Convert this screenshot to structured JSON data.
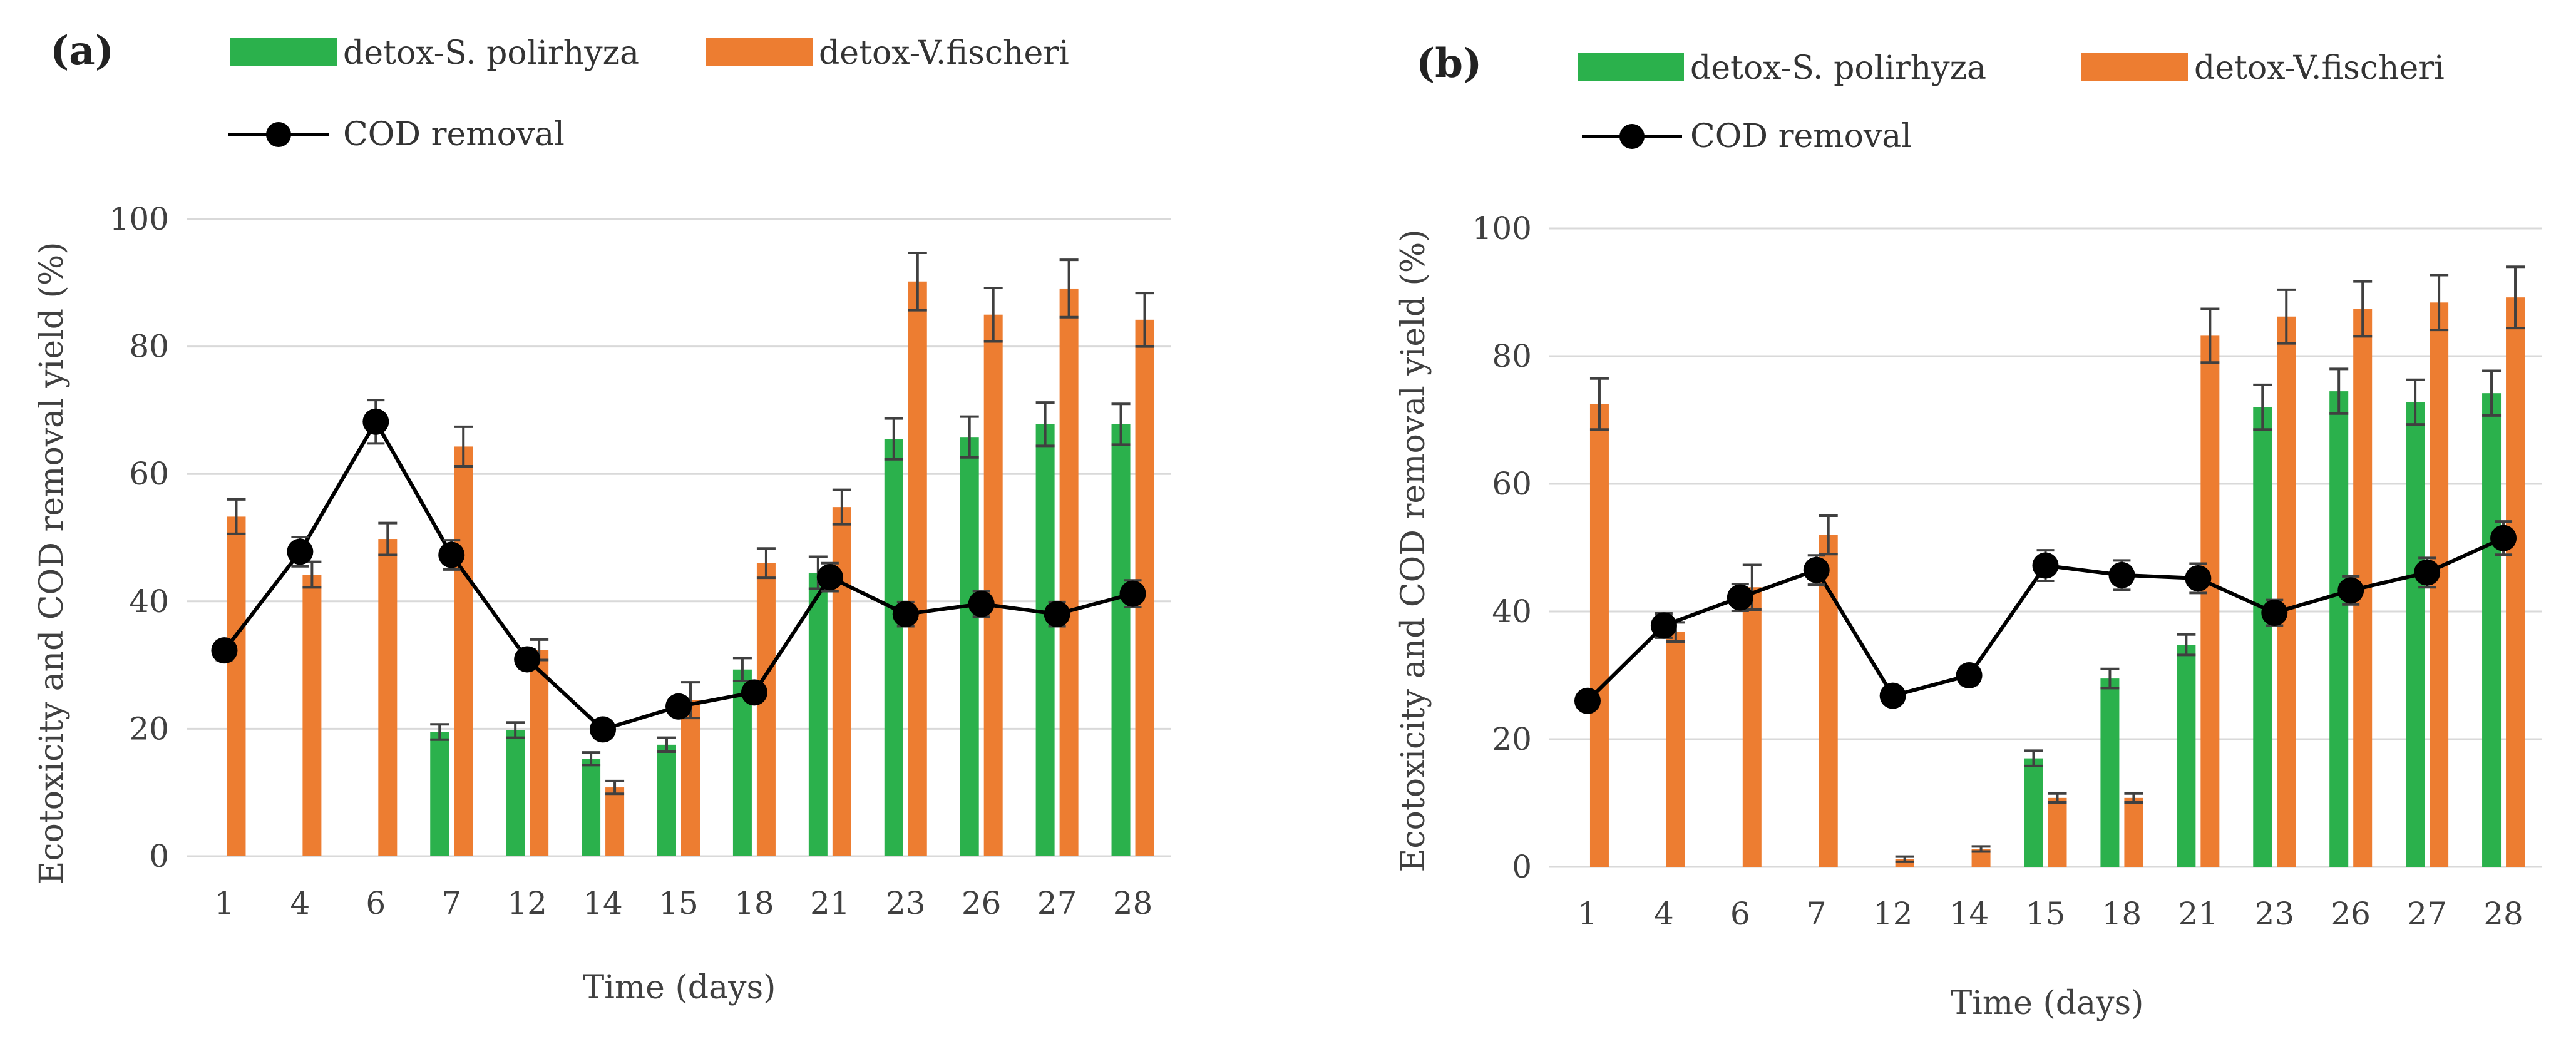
{
  "colors": {
    "green": "#2bb14c",
    "orange": "#ed7d31",
    "line": "#000000",
    "grid": "#d9d9d9",
    "error": "#404040"
  },
  "legend": {
    "series_a": "detox-S. polirhyza",
    "series_b": "detox-V.fischeri",
    "series_line": "COD removal"
  },
  "chart_data": [
    {
      "type": "bar",
      "panel": "(a)",
      "xlabel": "Time (days)",
      "ylabel": "Ecotoxicity and COD removal yield (%)",
      "ylim": [
        0,
        100
      ],
      "yticks": [
        0,
        20,
        40,
        60,
        80,
        100
      ],
      "grid": true,
      "categories": [
        "1",
        "4",
        "6",
        "7",
        "12",
        "14",
        "15",
        "18",
        "21",
        "23",
        "26",
        "27",
        "28"
      ],
      "series": [
        {
          "name": "detox-S. polirhyza",
          "kind": "bar",
          "values": [
            null,
            null,
            null,
            19.5,
            19.8,
            15.3,
            17.5,
            29.3,
            44.5,
            65.5,
            65.8,
            67.8,
            67.8
          ],
          "errors": [
            0,
            0,
            0,
            1.2,
            1.2,
            1.0,
            1.1,
            1.8,
            2.5,
            3.2,
            3.2,
            3.4,
            3.2
          ]
        },
        {
          "name": "detox-V.fischeri",
          "kind": "bar",
          "values": [
            53.3,
            44.2,
            49.8,
            64.3,
            32.4,
            10.8,
            24.5,
            46.0,
            54.8,
            90.2,
            85.0,
            89.1,
            84.2
          ],
          "errors": [
            2.7,
            2.0,
            2.5,
            3.1,
            1.6,
            1.0,
            2.8,
            2.3,
            2.7,
            4.5,
            4.2,
            4.5,
            4.2
          ]
        },
        {
          "name": "COD removal",
          "kind": "line",
          "values": [
            32.3,
            47.8,
            68.2,
            47.3,
            30.9,
            19.9,
            23.5,
            25.7,
            43.8,
            38.0,
            39.6,
            38.0,
            41.2
          ],
          "errors": [
            1.5,
            2.3,
            3.4,
            2.3,
            1.5,
            1.0,
            1.2,
            1.3,
            2.2,
            1.9,
            2.0,
            1.9,
            2.1
          ]
        }
      ]
    },
    {
      "type": "bar",
      "panel": "(b)",
      "xlabel": "Time (days)",
      "ylabel": "Ecotoxicity and COD removal yield (%)",
      "ylim": [
        0,
        100
      ],
      "yticks": [
        0,
        20,
        40,
        60,
        80,
        100
      ],
      "grid": true,
      "categories": [
        "1",
        "4",
        "6",
        "7",
        "12",
        "14",
        "15",
        "18",
        "21",
        "23",
        "26",
        "27",
        "28"
      ],
      "series": [
        {
          "name": "detox-S. polirhyza",
          "kind": "bar",
          "values": [
            null,
            null,
            null,
            null,
            null,
            null,
            17.0,
            29.5,
            34.8,
            72.0,
            74.5,
            72.8,
            74.2
          ],
          "errors": [
            0,
            0,
            0,
            0,
            0,
            0,
            1.2,
            1.5,
            1.6,
            3.5,
            3.5,
            3.5,
            3.5
          ]
        },
        {
          "name": "detox-V.fischeri",
          "kind": "bar",
          "values": [
            72.5,
            36.8,
            43.8,
            52.0,
            1.2,
            2.8,
            10.8,
            10.8,
            83.2,
            86.2,
            87.4,
            88.4,
            89.2
          ],
          "errors": [
            4.0,
            1.5,
            3.5,
            3.0,
            0.4,
            0.4,
            0.7,
            0.7,
            4.2,
            4.2,
            4.3,
            4.3,
            4.8
          ]
        },
        {
          "name": "COD removal",
          "kind": "line",
          "values": [
            26.0,
            37.8,
            42.2,
            46.5,
            26.8,
            30.0,
            47.2,
            45.7,
            45.2,
            39.8,
            43.3,
            46.1,
            51.5
          ],
          "errors": [
            1.3,
            1.9,
            2.1,
            2.3,
            1.3,
            1.5,
            2.4,
            2.3,
            2.3,
            2.0,
            2.2,
            2.3,
            2.6
          ]
        }
      ]
    }
  ]
}
